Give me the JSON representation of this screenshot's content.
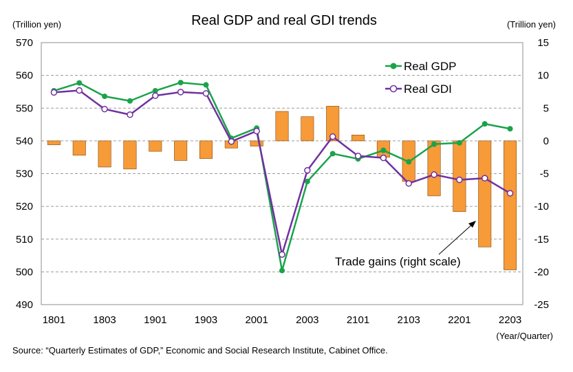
{
  "chart_data": {
    "type": "bar+line",
    "title": "Real GDP and real GDI trends",
    "left_unit": "(Trillion yen)",
    "right_unit": "(Trillion yen)",
    "x_unit": "(Year/Quarter)",
    "source": "Source: “Quarterly Estimates of GDP,” Economic and Social Research Institute, Cabinet Office.",
    "x": [
      "1801",
      "1802",
      "1803",
      "1804",
      "1901",
      "1902",
      "1903",
      "1904",
      "2001",
      "2002",
      "2003",
      "2004",
      "2101",
      "2102",
      "2103",
      "2104",
      "2201",
      "2202",
      "2203"
    ],
    "x_tick_labels": [
      "1801",
      "1803",
      "1901",
      "1903",
      "2001",
      "2003",
      "2101",
      "2103",
      "2201",
      "2203"
    ],
    "ylim_left": [
      490,
      570
    ],
    "yticks_left": [
      490,
      500,
      510,
      520,
      530,
      540,
      550,
      560,
      570
    ],
    "ylim_right": [
      -25,
      15
    ],
    "yticks_right": [
      -25,
      -20,
      -15,
      -10,
      -5,
      0,
      5,
      10,
      15
    ],
    "grid": true,
    "legend_position": "top-right",
    "series": [
      {
        "name": "Real GDP",
        "kind": "line",
        "axis": "left",
        "color": "#1aa34a",
        "marker": "filled-circle",
        "values": [
          555.3,
          557.7,
          553.6,
          552.2,
          555.3,
          557.8,
          557.1,
          540.8,
          543.9,
          500.4,
          527.6,
          536.1,
          534.5,
          537.1,
          533.6,
          539.0,
          539.4,
          545.2,
          543.7
        ]
      },
      {
        "name": "Real GDI",
        "kind": "line",
        "axis": "left",
        "color": "#7030a0",
        "marker": "hollow-circle",
        "values": [
          554.8,
          555.4,
          549.7,
          548.0,
          553.8,
          554.9,
          554.5,
          539.8,
          543.0,
          505.3,
          531.0,
          541.3,
          535.4,
          534.8,
          527.0,
          529.7,
          528.1,
          528.6,
          524.0
        ]
      },
      {
        "name": "Trade gains (right scale)",
        "kind": "bar",
        "axis": "right",
        "color": "#f79a38",
        "values": [
          -0.6,
          -2.2,
          -4.0,
          -4.3,
          -1.6,
          -3.0,
          -2.7,
          -1.1,
          -0.8,
          4.5,
          3.7,
          5.3,
          0.9,
          -2.5,
          -6.2,
          -8.4,
          -10.8,
          -16.2,
          -19.7
        ]
      }
    ],
    "annotation": {
      "text": "Trade gains (right scale)"
    }
  }
}
